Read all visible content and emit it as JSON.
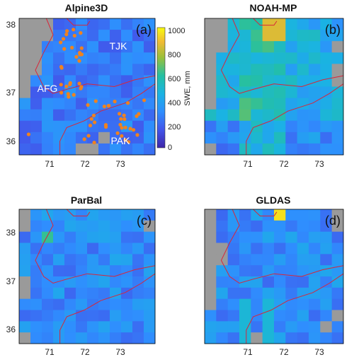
{
  "chart_data": [
    {
      "type": "heatmap",
      "title": "Alpine3D",
      "panel_label": "(a)",
      "xticks": [
        "71",
        "72",
        "73"
      ],
      "yticks": [
        "38",
        "37",
        "36"
      ],
      "regions": [
        "TJK",
        "AFG",
        "PAK"
      ],
      "has_stations": true
    },
    {
      "type": "heatmap",
      "title": "NOAH-MP",
      "panel_label": "(b)",
      "xticks": [
        "71",
        "72",
        "73"
      ],
      "yticks": [],
      "regions": [],
      "has_stations": false
    },
    {
      "type": "heatmap",
      "title": "ParBal",
      "panel_label": "(c)",
      "xticks": [
        "71",
        "72",
        "73"
      ],
      "yticks": [
        "38",
        "37",
        "36"
      ],
      "regions": [],
      "has_stations": false
    },
    {
      "type": "heatmap",
      "title": "GLDAS",
      "panel_label": "(d)",
      "xticks": [
        "71",
        "72",
        "73"
      ],
      "yticks": [],
      "regions": [],
      "has_stations": false
    }
  ],
  "colorbar": {
    "label": "SWE, mm",
    "ticks": [
      "1000",
      "800",
      "600",
      "400",
      "200",
      "0"
    ],
    "range": [
      0,
      1000
    ],
    "colormap": "parula"
  },
  "colors": {
    "no_data": "#9a9a9a",
    "border": "#d8263a",
    "stations": "#f0821e"
  }
}
